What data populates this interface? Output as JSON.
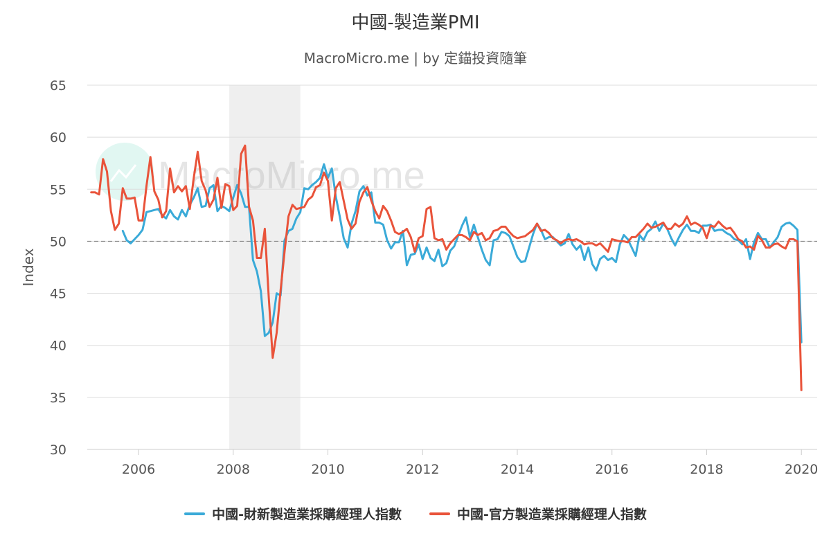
{
  "chart_data": {
    "type": "line",
    "title": "中國-製造業PMI",
    "subtitle": "MacroMicro.me | by 定錨投資隨筆",
    "watermark": "MacroMicro.me",
    "ylabel": "Index",
    "ylim": [
      30,
      65
    ],
    "yticks": [
      30,
      35,
      40,
      45,
      50,
      55,
      60,
      65
    ],
    "xlim": [
      "2004-12",
      "2020-05"
    ],
    "xticks": [
      "2006",
      "2008",
      "2010",
      "2012",
      "2014",
      "2016",
      "2018",
      "2020"
    ],
    "reference_line": 50,
    "recession_shading": {
      "start": "2007-12",
      "end": "2009-06"
    },
    "grid": true,
    "legend_position": "bottom",
    "series": [
      {
        "name": "中國-財新製造業採購經理人指數",
        "color": "#3aaad8",
        "start": "2005-09",
        "values": [
          51.0,
          50.1,
          49.8,
          50.2,
          50.6,
          51.1,
          52.8,
          52.9,
          53.0,
          53.1,
          52.5,
          52.2,
          53.0,
          52.4,
          52.1,
          53.0,
          52.4,
          53.5,
          54.2,
          55.1,
          53.3,
          53.4,
          55.1,
          55.4,
          52.9,
          53.4,
          53.2,
          52.9,
          54.2,
          55.4,
          54.6,
          53.3,
          53.3,
          48.2,
          47.1,
          45.2,
          40.9,
          41.2,
          42.2,
          45.0,
          44.8,
          50.1,
          51.0,
          51.2,
          52.2,
          52.8,
          55.1,
          55.0,
          55.4,
          55.7,
          56.1,
          57.4,
          56.1,
          57.0,
          54.3,
          52.4,
          50.3,
          49.4,
          51.7,
          52.9,
          54.8,
          55.3,
          54.4,
          54.7,
          51.8,
          51.8,
          51.6,
          50.1,
          49.3,
          49.9,
          49.9,
          51.0,
          47.7,
          48.7,
          48.8,
          49.7,
          48.3,
          49.4,
          48.4,
          48.1,
          49.2,
          47.6,
          47.9,
          49.1,
          49.5,
          50.5,
          51.5,
          52.3,
          50.4,
          51.6,
          50.4,
          49.2,
          48.2,
          47.7,
          50.1,
          50.2,
          50.9,
          50.8,
          50.5,
          49.5,
          48.5,
          48.0,
          48.1,
          49.4,
          50.7,
          51.7,
          51.1,
          50.2,
          50.4,
          50.4,
          50.0,
          49.6,
          49.8,
          50.7,
          49.7,
          49.2,
          49.6,
          48.2,
          49.4,
          47.8,
          47.2,
          48.3,
          48.6,
          48.2,
          48.4,
          48.0,
          49.7,
          50.6,
          50.2,
          49.4,
          48.6,
          50.6,
          50.1,
          50.9,
          51.2,
          51.9,
          51.0,
          51.7,
          51.2,
          50.3,
          49.6,
          50.4,
          51.1,
          51.6,
          51.0,
          51.0,
          50.8,
          51.5,
          51.5,
          51.6,
          51.0,
          51.1,
          51.1,
          50.8,
          50.6,
          50.2,
          50.1,
          49.7,
          50.2,
          48.3,
          49.9,
          50.8,
          50.2,
          50.2,
          49.4,
          49.9,
          50.4,
          51.4,
          51.7,
          51.8,
          51.5,
          51.1,
          40.3
        ]
      },
      {
        "name": "中國-官方製造業採購經理人指數",
        "color": "#e9533a",
        "start": "2005-01",
        "values": [
          54.7,
          54.7,
          54.5,
          57.9,
          56.7,
          52.9,
          51.1,
          51.7,
          55.1,
          54.1,
          54.1,
          54.2,
          52.0,
          52.0,
          55.3,
          58.1,
          54.8,
          54.0,
          52.3,
          52.9,
          57.0,
          54.7,
          55.3,
          54.8,
          55.3,
          53.1,
          56.1,
          58.6,
          55.8,
          54.9,
          53.3,
          54.0,
          56.1,
          53.2,
          55.5,
          55.3,
          53.0,
          53.4,
          58.4,
          59.2,
          53.3,
          52.0,
          48.4,
          48.4,
          51.2,
          44.6,
          38.8,
          41.2,
          45.3,
          49.0,
          52.4,
          53.5,
          53.1,
          53.2,
          53.3,
          54.0,
          54.3,
          55.2,
          55.4,
          56.6,
          55.8,
          52.0,
          55.1,
          55.7,
          53.9,
          52.1,
          51.2,
          51.7,
          53.8,
          54.7,
          55.2,
          53.9,
          52.9,
          52.2,
          53.4,
          52.9,
          52.0,
          50.9,
          50.7,
          50.9,
          51.2,
          50.4,
          49.0,
          50.3,
          50.5,
          53.1,
          53.3,
          50.3,
          50.1,
          50.2,
          49.2,
          49.8,
          50.2,
          50.6,
          50.6,
          50.4,
          50.1,
          50.9,
          50.6,
          50.8,
          50.1,
          50.3,
          51.0,
          51.1,
          51.4,
          51.4,
          50.9,
          50.5,
          50.3,
          50.4,
          50.5,
          50.8,
          51.1,
          51.7,
          51.0,
          51.1,
          50.8,
          50.3,
          50.1,
          49.8,
          50.1,
          50.2,
          50.1,
          50.2,
          50.0,
          49.7,
          49.8,
          49.8,
          49.6,
          49.8,
          49.4,
          49.0,
          50.2,
          50.1,
          50.0,
          50.0,
          49.9,
          50.4,
          50.4,
          50.8,
          51.2,
          51.7,
          51.3,
          51.4,
          51.6,
          51.8,
          51.2,
          51.2,
          51.7,
          51.4,
          51.7,
          52.4,
          51.6,
          51.8,
          51.6,
          51.3,
          50.3,
          51.5,
          51.4,
          51.9,
          51.5,
          51.2,
          51.3,
          50.8,
          50.2,
          50.0,
          49.4,
          49.5,
          49.2,
          50.5,
          50.1,
          49.4,
          49.4,
          49.7,
          49.8,
          49.5,
          49.3,
          50.2,
          50.2,
          50.0,
          35.7
        ]
      }
    ]
  }
}
